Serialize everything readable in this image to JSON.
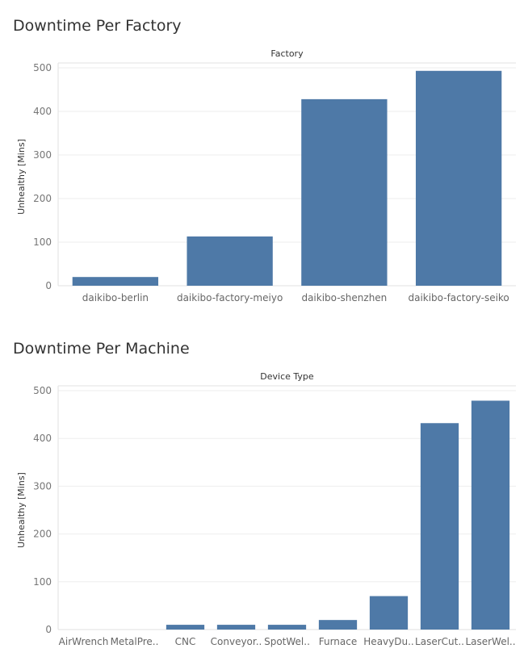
{
  "chart_data": [
    {
      "type": "bar",
      "title": "Downtime Per Factory",
      "column_header": "Factory",
      "xlabel": "",
      "ylabel": "Unhealthy [Mins]",
      "ylim": [
        0,
        500
      ],
      "yticks": [
        0,
        100,
        200,
        300,
        400,
        500
      ],
      "grid": true,
      "color": "#4e79a7",
      "categories": [
        "daikibo-berlin",
        "daikibo-factory-meiyo",
        "daikibo-shenzhen",
        "daikibo-factory-seiko"
      ],
      "values": [
        20,
        113,
        428,
        493
      ]
    },
    {
      "type": "bar",
      "title": "Downtime Per Machine",
      "column_header": "Device Type",
      "xlabel": "",
      "ylabel": "Unhealthy [Mins]",
      "ylim": [
        0,
        500
      ],
      "yticks": [
        0,
        100,
        200,
        300,
        400,
        500
      ],
      "grid": true,
      "color": "#4e79a7",
      "categories": [
        "AirWrench",
        "MetalPre..",
        "CNC",
        "Conveyor..",
        "SpotWel..",
        "Furnace",
        "HeavyDu..",
        "LaserCut..",
        "LaserWel.."
      ],
      "values": [
        0,
        0,
        10,
        10,
        10,
        20,
        70,
        432,
        479
      ]
    }
  ]
}
